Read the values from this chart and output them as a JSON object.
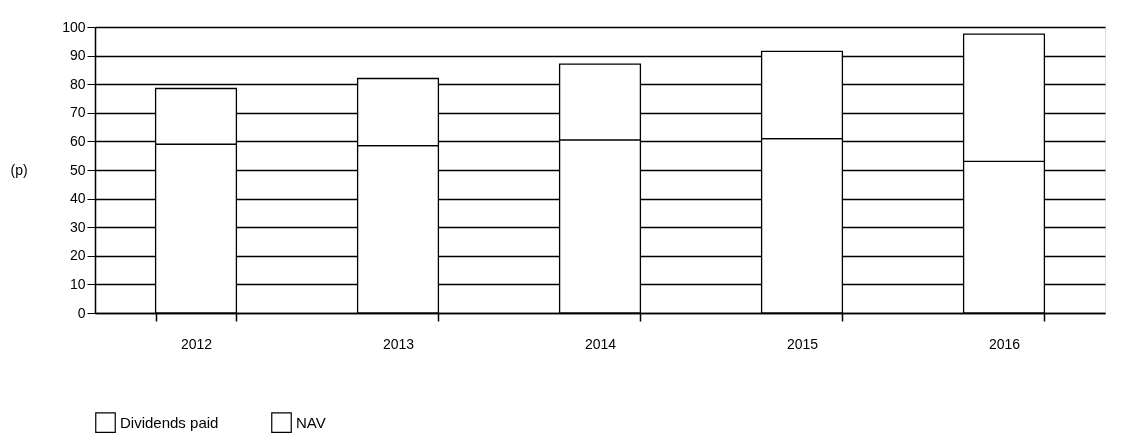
{
  "chart_data": {
    "type": "bar",
    "stacked": true,
    "ylabel": "(p)",
    "categories": [
      "2012",
      "2013",
      "2014",
      "2015",
      "2016"
    ],
    "series": [
      {
        "name": "NAV",
        "color": "#ffffff",
        "values": [
          59,
          58.5,
          60.5,
          61,
          53
        ]
      },
      {
        "name": "Dividends paid",
        "color": "#ffffff",
        "values": [
          19.5,
          23.5,
          26.5,
          30.5,
          44.5
        ]
      }
    ],
    "ylim": [
      0,
      100
    ],
    "yticks": [
      0,
      10,
      20,
      30,
      40,
      50,
      60,
      70,
      80,
      90,
      100
    ],
    "grid": "y",
    "legend": "bottom left"
  }
}
